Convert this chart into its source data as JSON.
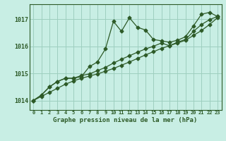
{
  "title": "Graphe pression niveau de la mer (hPa)",
  "bg_color": "#c8eee4",
  "grid_color": "#9ecfbf",
  "line_color": "#2d5a27",
  "hours": [
    0,
    1,
    2,
    3,
    4,
    5,
    6,
    7,
    8,
    9,
    10,
    11,
    12,
    13,
    14,
    15,
    16,
    17,
    18,
    19,
    20,
    21,
    22,
    23
  ],
  "line_straight": [
    1014.0,
    1014.15,
    1014.3,
    1014.45,
    1014.6,
    1014.72,
    1014.82,
    1014.9,
    1014.98,
    1015.08,
    1015.18,
    1015.3,
    1015.42,
    1015.55,
    1015.68,
    1015.8,
    1015.92,
    1016.02,
    1016.12,
    1016.22,
    1016.4,
    1016.58,
    1016.8,
    1017.05
  ],
  "line_wavy": [
    1014.0,
    1014.2,
    1014.5,
    1014.7,
    1014.82,
    1014.82,
    1014.88,
    1015.25,
    1015.42,
    1015.9,
    1016.92,
    1016.55,
    1017.05,
    1016.7,
    1016.6,
    1016.25,
    1016.2,
    1016.15,
    1016.22,
    1016.35,
    1016.75,
    1017.18,
    1017.25,
    1017.1
  ],
  "line_mid": [
    1014.0,
    1014.2,
    1014.5,
    1014.7,
    1014.82,
    1014.82,
    1014.92,
    1014.98,
    1015.1,
    1015.22,
    1015.38,
    1015.52,
    1015.65,
    1015.78,
    1015.9,
    1016.0,
    1016.12,
    1016.02,
    1016.15,
    1016.25,
    1016.55,
    1016.8,
    1016.98,
    1017.1
  ],
  "yticks": [
    1014,
    1015,
    1016,
    1017
  ],
  "ylim": [
    1013.65,
    1017.55
  ],
  "xlim": [
    -0.5,
    23.5
  ]
}
